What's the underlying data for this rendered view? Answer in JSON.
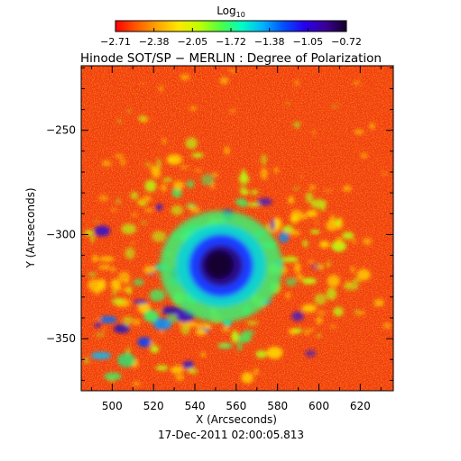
{
  "colorbar": {
    "label_main": "Log",
    "label_sub": "10",
    "tick_labels": [
      "−2.71",
      "−2.38",
      "−2.05",
      "−1.72",
      "−1.38",
      "−1.05",
      "−0.72"
    ],
    "range": [
      -2.71,
      -0.72
    ],
    "colormap": [
      "#ff0000",
      "#ff5a00",
      "#ffa500",
      "#ffe600",
      "#bfff00",
      "#50ff40",
      "#00ffc0",
      "#00b4ff",
      "#0050ff",
      "#2800f0",
      "#3a0096",
      "#14002a"
    ]
  },
  "map": {
    "title": "Hinode SOT/SP − MERLIN : Degree of Polarization",
    "xlabel": "X (Arcseconds)",
    "ylabel": "Y (Arcseconds)",
    "x_ticks": [
      "500",
      "520",
      "540",
      "560",
      "580",
      "600",
      "620"
    ],
    "y_ticks": [
      "−250",
      "−300",
      "−350"
    ],
    "xlim": [
      485,
      636
    ],
    "ylim": [
      -375,
      -219
    ],
    "timestamp": "17-Dec-2011 02:00:05.813",
    "sunspot_center": [
      556,
      -313
    ],
    "sunspot_umbra_radius_arcsec": 9.5,
    "background_level": -2.6
  }
}
